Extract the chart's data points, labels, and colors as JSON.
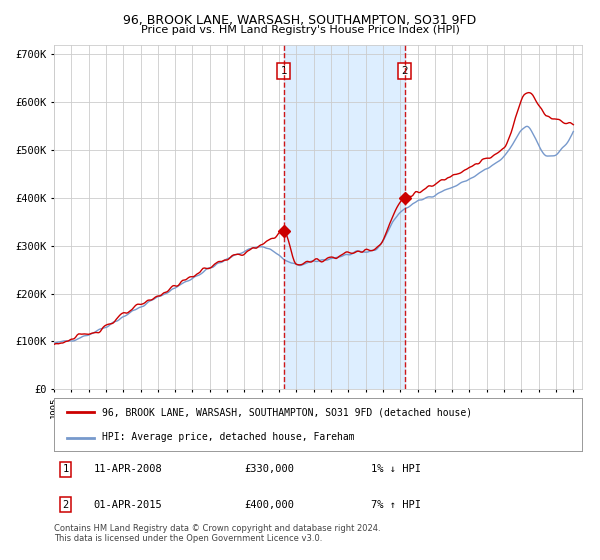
{
  "title": "96, BROOK LANE, WARSASH, SOUTHAMPTON, SO31 9FD",
  "subtitle": "Price paid vs. HM Land Registry's House Price Index (HPI)",
  "ylim": [
    0,
    720000
  ],
  "yticks": [
    0,
    100000,
    200000,
    300000,
    400000,
    500000,
    600000,
    700000
  ],
  "ytick_labels": [
    "£0",
    "£100K",
    "£200K",
    "£300K",
    "£400K",
    "£500K",
    "£600K",
    "£700K"
  ],
  "sale1_date": 2008.28,
  "sale1_price": 330000,
  "sale2_date": 2015.25,
  "sale2_price": 400000,
  "shading_color": "#ddeeff",
  "legend_red": "96, BROOK LANE, WARSASH, SOUTHAMPTON, SO31 9FD (detached house)",
  "legend_blue": "HPI: Average price, detached house, Fareham",
  "footer": "Contains HM Land Registry data © Crown copyright and database right 2024.\nThis data is licensed under the Open Government Licence v3.0.",
  "red_color": "#cc0000",
  "blue_color": "#7799cc",
  "bg_color": "#ffffff",
  "grid_color": "#cccccc",
  "hpi_anchors_d": [
    1995.0,
    1997.0,
    1999.5,
    2002.0,
    2004.5,
    2007.0,
    2009.0,
    2010.5,
    2012.0,
    2013.5,
    2015.0,
    2016.5,
    2018.5,
    2019.5,
    2021.0,
    2022.3,
    2023.5,
    2025.0
  ],
  "hpi_anchors_v": [
    95000,
    115000,
    162000,
    212000,
    262000,
    298000,
    260000,
    270000,
    281000,
    291000,
    370000,
    400000,
    430000,
    450000,
    485000,
    548000,
    488000,
    540000
  ],
  "red_anchors_d": [
    1995.0,
    1997.0,
    1999.5,
    2002.0,
    2004.5,
    2007.0,
    2008.28,
    2009.0,
    2010.5,
    2012.0,
    2013.5,
    2015.25,
    2016.5,
    2018.5,
    2019.5,
    2021.0,
    2022.3,
    2023.5,
    2025.0
  ],
  "red_anchors_v": [
    95000,
    116000,
    165000,
    216000,
    265000,
    300000,
    330000,
    262000,
    272000,
    284000,
    294000,
    400000,
    418000,
    458000,
    473000,
    503000,
    622000,
    572000,
    558000
  ]
}
